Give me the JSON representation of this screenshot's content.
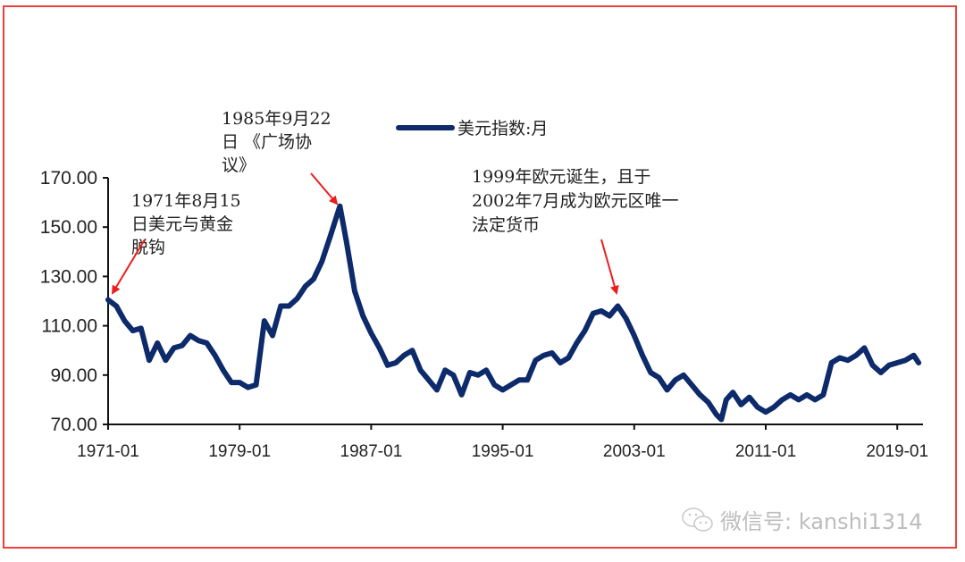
{
  "chart_data": {
    "type": "line",
    "title": "",
    "xlabel": "",
    "ylabel": "",
    "ylim": [
      70,
      170
    ],
    "yticks": [
      "170.00",
      "150.00",
      "130.00",
      "110.00",
      "90.00",
      "70.00"
    ],
    "xticks": [
      "1971-01",
      "1979-01",
      "1987-01",
      "1995-01",
      "2003-01",
      "2011-01",
      "2019-01"
    ],
    "legend": {
      "label": "美元指数:月",
      "position": "top-center"
    },
    "grid": false,
    "series": [
      {
        "name": "美元指数:月",
        "color": "#0d2a6b",
        "x": [
          1971.0,
          1971.5,
          1972.0,
          1972.5,
          1973.0,
          1973.5,
          1974.0,
          1974.5,
          1975.0,
          1975.5,
          1976.0,
          1976.5,
          1977.0,
          1977.5,
          1978.0,
          1978.5,
          1979.0,
          1979.5,
          1980.0,
          1980.5,
          1981.0,
          1981.5,
          1982.0,
          1982.5,
          1983.0,
          1983.5,
          1984.0,
          1984.5,
          1985.1,
          1985.5,
          1986.0,
          1986.5,
          1987.0,
          1987.5,
          1988.0,
          1988.5,
          1989.0,
          1989.5,
          1990.0,
          1990.5,
          1991.0,
          1991.5,
          1992.0,
          1992.5,
          1993.0,
          1993.5,
          1994.0,
          1994.5,
          1995.0,
          1995.5,
          1996.0,
          1996.5,
          1997.0,
          1997.5,
          1998.0,
          1998.5,
          1999.0,
          1999.5,
          2000.0,
          2000.5,
          2001.0,
          2001.5,
          2002.0,
          2002.5,
          2003.0,
          2003.5,
          2004.0,
          2004.5,
          2005.0,
          2005.5,
          2006.0,
          2006.5,
          2007.0,
          2007.5,
          2008.0,
          2008.3,
          2008.6,
          2009.0,
          2009.5,
          2010.0,
          2010.5,
          2011.0,
          2011.5,
          2012.0,
          2012.5,
          2013.0,
          2013.5,
          2014.0,
          2014.5,
          2015.0,
          2015.5,
          2016.0,
          2016.5,
          2017.0,
          2017.5,
          2018.0,
          2018.5,
          2019.0,
          2019.5,
          2020.0,
          2020.3
        ],
        "values": [
          120.5,
          118,
          112,
          108,
          109,
          96,
          103,
          96,
          101,
          102,
          106,
          104,
          103,
          98,
          92,
          87,
          87,
          85,
          86,
          112,
          106,
          118,
          118,
          121,
          126,
          129,
          136,
          146,
          158.5,
          144,
          124,
          114,
          107,
          101,
          94,
          95,
          98,
          100,
          92,
          88,
          84,
          92,
          90,
          82,
          91,
          90,
          92,
          86,
          84,
          86,
          88,
          88,
          96,
          98,
          99,
          95,
          97,
          103,
          108,
          115,
          116,
          114,
          118,
          113,
          106,
          98,
          91,
          89,
          84,
          88,
          90,
          86,
          82,
          79,
          74,
          72,
          80,
          83,
          78,
          81,
          77,
          75,
          77,
          80,
          82,
          80,
          82,
          80,
          82,
          95,
          97,
          96,
          98,
          101,
          94,
          91,
          94,
          95,
          96,
          98,
          95
        ]
      }
    ],
    "annotations": [
      {
        "text": [
          "1971年8月15",
          "日美元与黄金",
          "脱钩"
        ],
        "target": "1971-08"
      },
      {
        "text": [
          "1985年9月22",
          "日 《广场协",
          "议》"
        ],
        "target": "1985-09"
      },
      {
        "text": [
          "1999年欧元诞生，且于",
          "2002年7月成为欧元区唯一",
          "法定货币"
        ],
        "target": "2002-01"
      }
    ]
  },
  "watermark": {
    "text": "微信号: kanshi1314"
  }
}
